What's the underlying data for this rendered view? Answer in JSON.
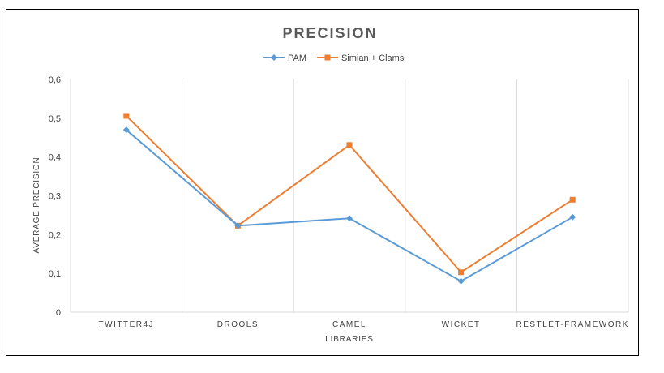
{
  "chart_data": {
    "type": "line",
    "title": "PRECISION",
    "xlabel": "LIBRARIES",
    "ylabel": "AVERAGE PRECISION",
    "categories": [
      "TWITTER4J",
      "DROOLS",
      "CAMEL",
      "WICKET",
      "RESTLET-FRAMEWORK"
    ],
    "series": [
      {
        "name": "PAM",
        "values": [
          0.47,
          0.223,
          0.242,
          0.08,
          0.245
        ],
        "color": "#5B9BD5",
        "marker": "diamond"
      },
      {
        "name": "Simian + Clams",
        "values": [
          0.506,
          0.223,
          0.431,
          0.103,
          0.29
        ],
        "color": "#ED7D31",
        "marker": "square"
      }
    ],
    "ylim": [
      0,
      0.6
    ],
    "yticks": [
      "0",
      "0,1",
      "0,2",
      "0,3",
      "0,4",
      "0,5",
      "0,6"
    ],
    "grid": "vertical",
    "legend": "top-center"
  }
}
